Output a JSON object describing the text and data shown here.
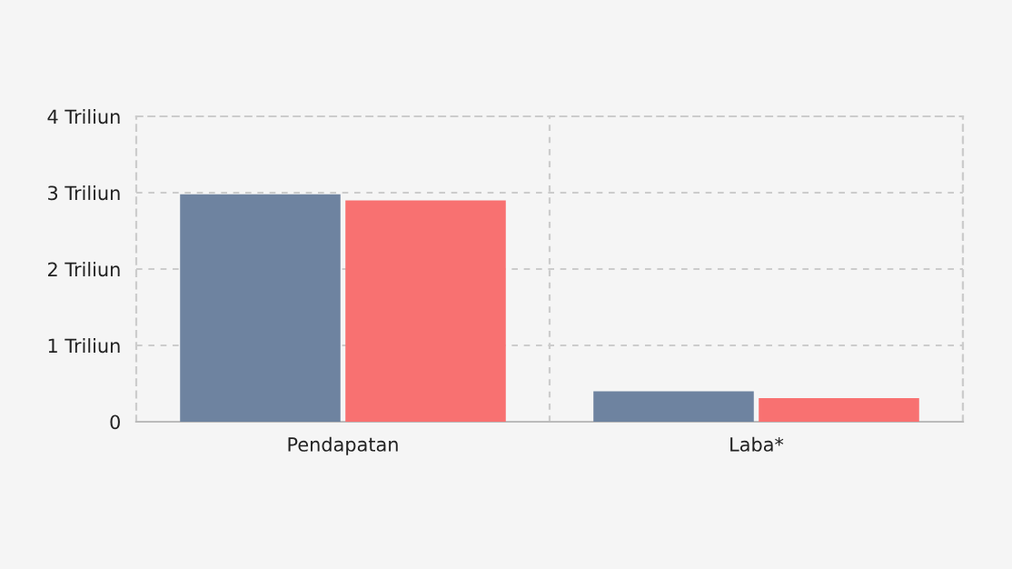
{
  "chart_data": {
    "type": "bar",
    "categories": [
      "Pendapatan",
      "Laba*"
    ],
    "series": [
      {
        "color": "#6e83a0",
        "values": [
          2.98,
          0.4
        ]
      },
      {
        "color": "#f87171",
        "values": [
          2.9,
          0.31
        ]
      }
    ],
    "ylim": [
      0,
      4
    ],
    "yticks": [
      0,
      {
        "value": 1,
        "label": "1 Triliun"
      },
      {
        "value": 2,
        "label": "2 Triliun"
      },
      {
        "value": 3,
        "label": "3 Triliun"
      },
      {
        "value": 4,
        "label": "4 Triliun"
      }
    ],
    "grid": true,
    "legend": false
  }
}
